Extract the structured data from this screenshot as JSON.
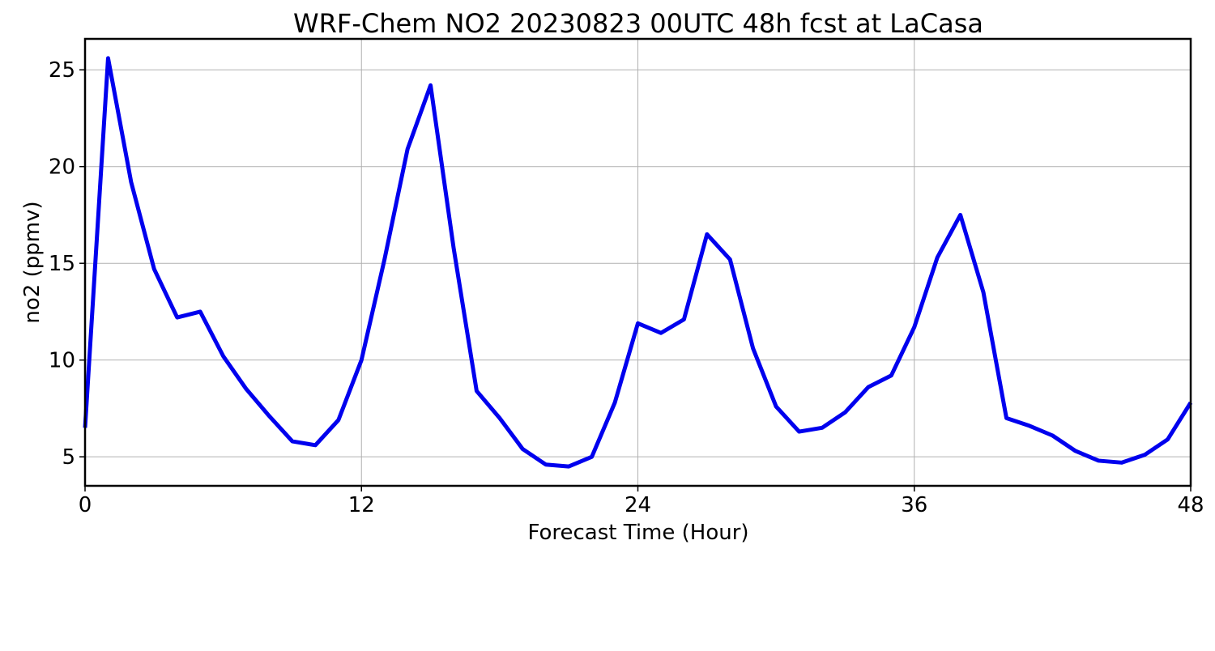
{
  "chart_data": {
    "type": "line",
    "title": "WRF-Chem NO2  20230823 00UTC 48h fcst at LaCasa",
    "xlabel": "Forecast Time (Hour)",
    "ylabel": "no2  (ppmv)",
    "xlim": [
      0,
      48
    ],
    "ylim": [
      3.5,
      26.6
    ],
    "xticks": [
      0,
      12,
      24,
      36,
      48
    ],
    "yticks": [
      5,
      10,
      15,
      20,
      25
    ],
    "grid": true,
    "series": [
      {
        "color": "#0000ee",
        "x": [
          0,
          1,
          2,
          3,
          4,
          5,
          6,
          7,
          8,
          9,
          10,
          11,
          12,
          13,
          14,
          15,
          16,
          17,
          18,
          19,
          20,
          21,
          22,
          23,
          24,
          25,
          26,
          27,
          28,
          29,
          30,
          31,
          32,
          33,
          34,
          35,
          36,
          37,
          38,
          39,
          40,
          41,
          42,
          43,
          44,
          45,
          46,
          47,
          48
        ],
        "values": [
          6.5,
          25.6,
          19.2,
          14.7,
          12.2,
          12.5,
          10.2,
          8.5,
          7.1,
          5.8,
          5.6,
          6.9,
          10.0,
          15.2,
          20.9,
          24.2,
          15.8,
          8.4,
          7.0,
          5.4,
          4.6,
          4.5,
          5.0,
          7.8,
          11.9,
          11.4,
          12.1,
          16.5,
          15.2,
          10.6,
          7.6,
          6.3,
          6.5,
          7.3,
          8.6,
          9.2,
          11.7,
          15.3,
          17.5,
          13.5,
          7.0,
          6.6,
          6.1,
          5.3,
          4.8,
          4.7,
          5.1,
          5.9,
          7.8
        ]
      }
    ]
  }
}
